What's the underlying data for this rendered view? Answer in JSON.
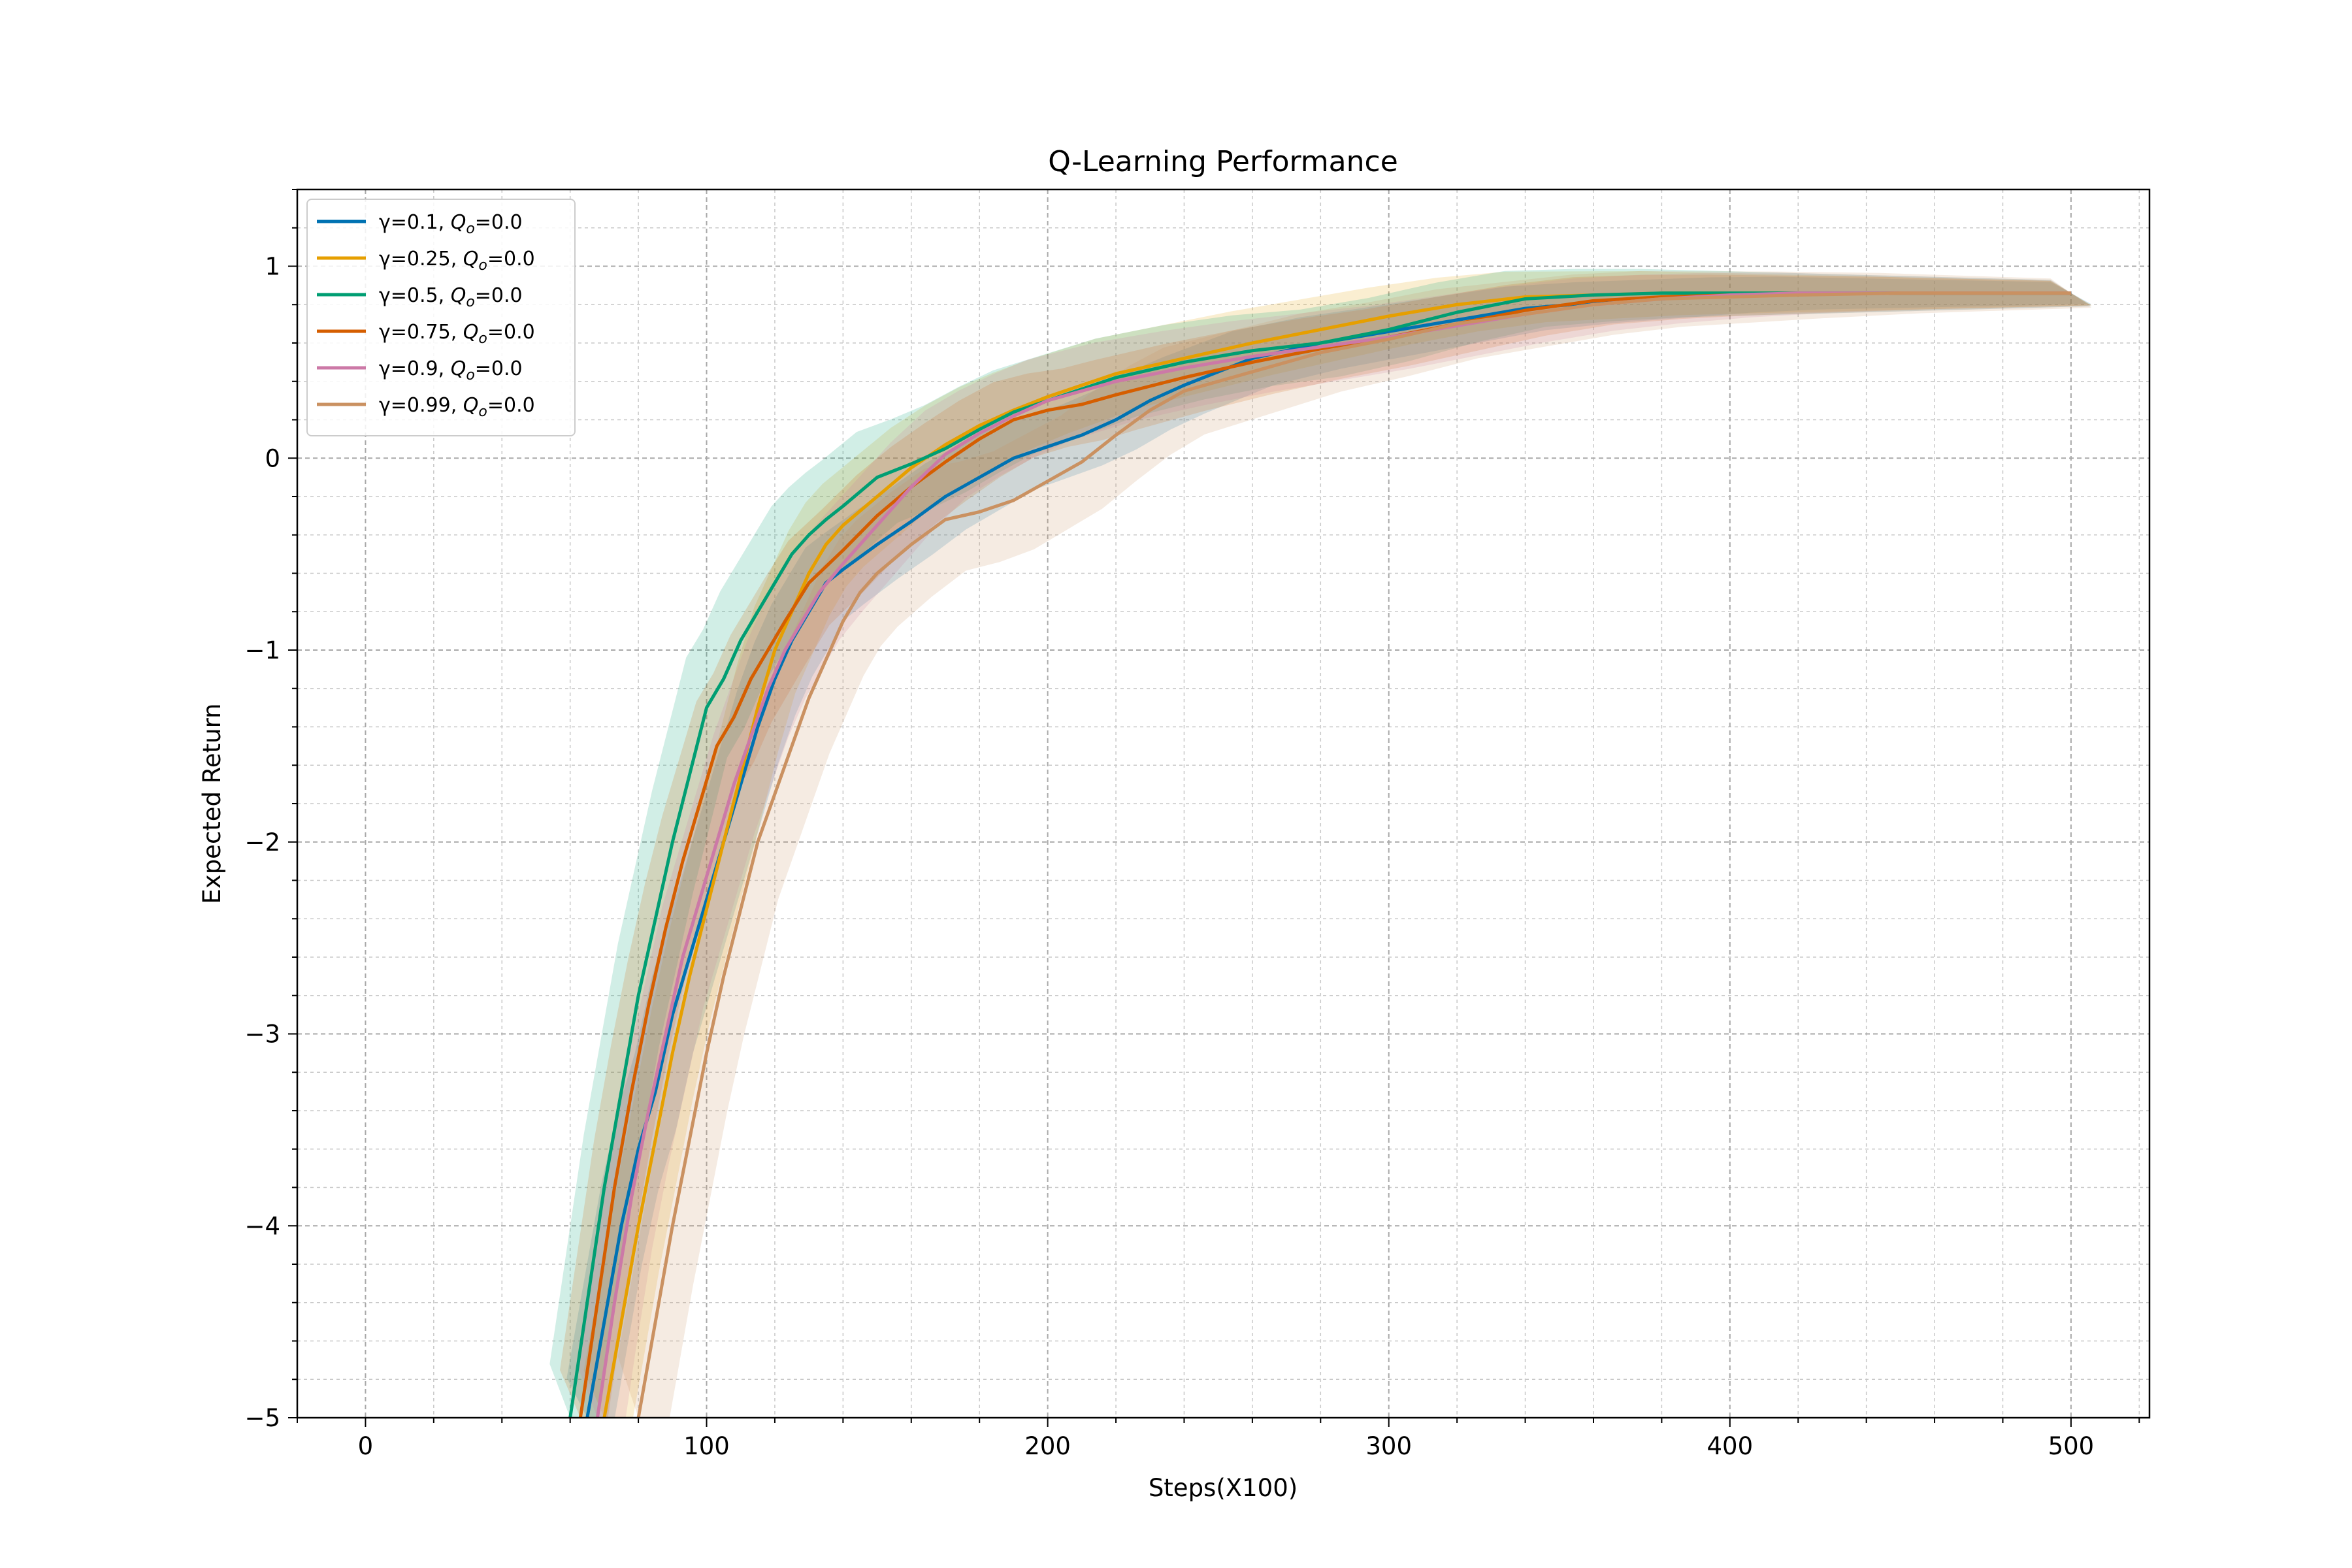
{
  "chart_data": {
    "type": "line",
    "title": "Q-Learning Performance",
    "xlabel": "Steps(X100)",
    "ylabel": "Expected Return",
    "xlim": [
      -20,
      523
    ],
    "ylim": [
      -5,
      1.4
    ],
    "x_ticks": [
      0,
      100,
      200,
      300,
      400,
      500
    ],
    "y_ticks": [
      -5,
      -4,
      -3,
      -2,
      -1,
      0,
      1
    ],
    "grid": true,
    "minor_grid": true,
    "legend_position": "top-left",
    "series": [
      {
        "name": "γ=0.1, Q_o=0.0",
        "legend_prefix": "γ=0.1, ",
        "legend_suffix": "=0.0",
        "color": "#0072b2",
        "band": 0.18,
        "points": [
          [
            65,
            -5.0
          ],
          [
            70,
            -4.5
          ],
          [
            75,
            -4.0
          ],
          [
            80,
            -3.6
          ],
          [
            85,
            -3.3
          ],
          [
            90,
            -2.9
          ],
          [
            95,
            -2.6
          ],
          [
            100,
            -2.3
          ],
          [
            105,
            -2.0
          ],
          [
            110,
            -1.7
          ],
          [
            115,
            -1.4
          ],
          [
            120,
            -1.15
          ],
          [
            125,
            -0.95
          ],
          [
            130,
            -0.8
          ],
          [
            135,
            -0.65
          ],
          [
            140,
            -0.58
          ],
          [
            150,
            -0.45
          ],
          [
            160,
            -0.33
          ],
          [
            170,
            -0.2
          ],
          [
            180,
            -0.1
          ],
          [
            190,
            0.0
          ],
          [
            200,
            0.06
          ],
          [
            210,
            0.12
          ],
          [
            220,
            0.2
          ],
          [
            230,
            0.3
          ],
          [
            240,
            0.38
          ],
          [
            250,
            0.45
          ],
          [
            260,
            0.52
          ],
          [
            280,
            0.6
          ],
          [
            300,
            0.66
          ],
          [
            320,
            0.72
          ],
          [
            340,
            0.78
          ],
          [
            360,
            0.81
          ],
          [
            380,
            0.83
          ],
          [
            400,
            0.85
          ],
          [
            420,
            0.86
          ],
          [
            450,
            0.86
          ],
          [
            500,
            0.86
          ]
        ]
      },
      {
        "name": "γ=0.25, Q_o=0.0",
        "legend_prefix": "γ=0.25, ",
        "legend_suffix": "=0.0",
        "color": "#e69f00",
        "band": 0.22,
        "points": [
          [
            70,
            -5.0
          ],
          [
            75,
            -4.5
          ],
          [
            80,
            -4.0
          ],
          [
            85,
            -3.55
          ],
          [
            90,
            -3.1
          ],
          [
            95,
            -2.7
          ],
          [
            100,
            -2.35
          ],
          [
            105,
            -2.0
          ],
          [
            110,
            -1.65
          ],
          [
            115,
            -1.3
          ],
          [
            120,
            -1.0
          ],
          [
            125,
            -0.8
          ],
          [
            130,
            -0.6
          ],
          [
            135,
            -0.45
          ],
          [
            140,
            -0.35
          ],
          [
            150,
            -0.2
          ],
          [
            160,
            -0.05
          ],
          [
            170,
            0.07
          ],
          [
            180,
            0.17
          ],
          [
            190,
            0.25
          ],
          [
            200,
            0.32
          ],
          [
            210,
            0.38
          ],
          [
            220,
            0.44
          ],
          [
            240,
            0.52
          ],
          [
            260,
            0.6
          ],
          [
            280,
            0.67
          ],
          [
            300,
            0.74
          ],
          [
            320,
            0.8
          ],
          [
            340,
            0.84
          ],
          [
            360,
            0.85
          ],
          [
            380,
            0.86
          ],
          [
            400,
            0.86
          ],
          [
            450,
            0.86
          ],
          [
            500,
            0.86
          ]
        ]
      },
      {
        "name": "γ=0.5, Q_o=0.0",
        "legend_prefix": "γ=0.5, ",
        "legend_suffix": "=0.0",
        "color": "#009e73",
        "band": 0.25,
        "points": [
          [
            60,
            -5.0
          ],
          [
            65,
            -4.4
          ],
          [
            70,
            -3.8
          ],
          [
            75,
            -3.3
          ],
          [
            80,
            -2.8
          ],
          [
            85,
            -2.4
          ],
          [
            90,
            -2.0
          ],
          [
            95,
            -1.65
          ],
          [
            100,
            -1.3
          ],
          [
            105,
            -1.15
          ],
          [
            110,
            -0.95
          ],
          [
            115,
            -0.8
          ],
          [
            120,
            -0.65
          ],
          [
            125,
            -0.5
          ],
          [
            130,
            -0.4
          ],
          [
            135,
            -0.32
          ],
          [
            140,
            -0.25
          ],
          [
            150,
            -0.1
          ],
          [
            160,
            -0.03
          ],
          [
            170,
            0.05
          ],
          [
            180,
            0.15
          ],
          [
            190,
            0.24
          ],
          [
            200,
            0.3
          ],
          [
            210,
            0.36
          ],
          [
            220,
            0.42
          ],
          [
            240,
            0.5
          ],
          [
            260,
            0.56
          ],
          [
            280,
            0.6
          ],
          [
            300,
            0.67
          ],
          [
            320,
            0.76
          ],
          [
            340,
            0.83
          ],
          [
            360,
            0.85
          ],
          [
            380,
            0.86
          ],
          [
            400,
            0.86
          ],
          [
            450,
            0.86
          ],
          [
            500,
            0.86
          ]
        ]
      },
      {
        "name": "γ=0.75, Q_o=0.0",
        "legend_prefix": "γ=0.75, ",
        "legend_suffix": "=0.0",
        "color": "#d55e00",
        "band": 0.22,
        "points": [
          [
            63,
            -5.0
          ],
          [
            68,
            -4.4
          ],
          [
            73,
            -3.8
          ],
          [
            78,
            -3.3
          ],
          [
            83,
            -2.85
          ],
          [
            88,
            -2.45
          ],
          [
            93,
            -2.1
          ],
          [
            98,
            -1.8
          ],
          [
            103,
            -1.5
          ],
          [
            108,
            -1.35
          ],
          [
            113,
            -1.15
          ],
          [
            118,
            -1.0
          ],
          [
            123,
            -0.85
          ],
          [
            130,
            -0.65
          ],
          [
            140,
            -0.48
          ],
          [
            150,
            -0.3
          ],
          [
            160,
            -0.15
          ],
          [
            170,
            -0.02
          ],
          [
            180,
            0.1
          ],
          [
            190,
            0.2
          ],
          [
            200,
            0.25
          ],
          [
            210,
            0.28
          ],
          [
            220,
            0.33
          ],
          [
            240,
            0.42
          ],
          [
            260,
            0.5
          ],
          [
            280,
            0.57
          ],
          [
            300,
            0.63
          ],
          [
            320,
            0.7
          ],
          [
            340,
            0.77
          ],
          [
            360,
            0.82
          ],
          [
            380,
            0.84
          ],
          [
            400,
            0.85
          ],
          [
            450,
            0.86
          ],
          [
            500,
            0.86
          ]
        ]
      },
      {
        "name": "γ=0.9, Q_o=0.0",
        "legend_prefix": "γ=0.9, ",
        "legend_suffix": "=0.0",
        "color": "#cc79a7",
        "band": 0.25,
        "points": [
          [
            68,
            -5.0
          ],
          [
            73,
            -4.4
          ],
          [
            78,
            -3.85
          ],
          [
            83,
            -3.4
          ],
          [
            88,
            -3.0
          ],
          [
            93,
            -2.6
          ],
          [
            98,
            -2.3
          ],
          [
            103,
            -2.0
          ],
          [
            108,
            -1.7
          ],
          [
            113,
            -1.45
          ],
          [
            118,
            -1.2
          ],
          [
            123,
            -1.0
          ],
          [
            128,
            -0.85
          ],
          [
            133,
            -0.7
          ],
          [
            140,
            -0.55
          ],
          [
            150,
            -0.35
          ],
          [
            160,
            -0.15
          ],
          [
            170,
            0.02
          ],
          [
            180,
            0.13
          ],
          [
            190,
            0.22
          ],
          [
            200,
            0.3
          ],
          [
            210,
            0.35
          ],
          [
            220,
            0.4
          ],
          [
            240,
            0.47
          ],
          [
            260,
            0.53
          ],
          [
            280,
            0.58
          ],
          [
            300,
            0.63
          ],
          [
            320,
            0.69
          ],
          [
            340,
            0.75
          ],
          [
            360,
            0.8
          ],
          [
            380,
            0.83
          ],
          [
            400,
            0.85
          ],
          [
            420,
            0.86
          ],
          [
            450,
            0.86
          ],
          [
            500,
            0.86
          ]
        ]
      },
      {
        "name": "γ=0.99, Q_o=0.0",
        "legend_prefix": "γ=0.99, ",
        "legend_suffix": "=0.0",
        "color": "#ca9161",
        "band": 0.3,
        "points": [
          [
            80,
            -5.0
          ],
          [
            85,
            -4.5
          ],
          [
            90,
            -4.0
          ],
          [
            95,
            -3.55
          ],
          [
            100,
            -3.1
          ],
          [
            105,
            -2.7
          ],
          [
            110,
            -2.35
          ],
          [
            115,
            -2.0
          ],
          [
            120,
            -1.75
          ],
          [
            125,
            -1.5
          ],
          [
            130,
            -1.25
          ],
          [
            135,
            -1.05
          ],
          [
            140,
            -0.85
          ],
          [
            145,
            -0.7
          ],
          [
            150,
            -0.6
          ],
          [
            160,
            -0.45
          ],
          [
            170,
            -0.32
          ],
          [
            180,
            -0.28
          ],
          [
            190,
            -0.22
          ],
          [
            200,
            -0.12
          ],
          [
            210,
            -0.02
          ],
          [
            220,
            0.12
          ],
          [
            230,
            0.25
          ],
          [
            240,
            0.35
          ],
          [
            260,
            0.45
          ],
          [
            280,
            0.55
          ],
          [
            300,
            0.62
          ],
          [
            320,
            0.7
          ],
          [
            340,
            0.75
          ],
          [
            360,
            0.8
          ],
          [
            380,
            0.83
          ],
          [
            400,
            0.84
          ],
          [
            420,
            0.85
          ],
          [
            450,
            0.86
          ],
          [
            500,
            0.86
          ]
        ]
      }
    ]
  }
}
